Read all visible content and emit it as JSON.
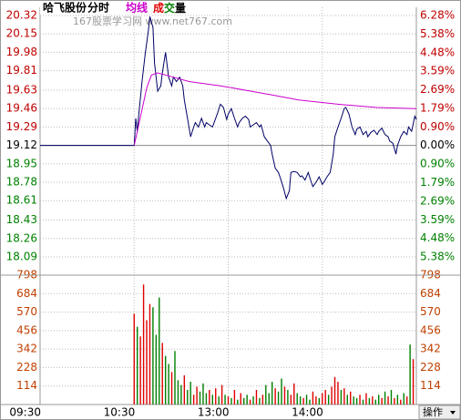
{
  "chart_data": [
    {
      "type": "line",
      "title": "哈飞股份",
      "subtitle": "分时",
      "watermark": "167股票学习网 www.net767.com",
      "xlim": [
        0,
        240
      ],
      "xticks": [
        {
          "value": 0,
          "label": "09:30"
        },
        {
          "value": 60,
          "label": "10:30"
        },
        {
          "value": 120,
          "label": "13:00"
        },
        {
          "value": 180,
          "label": "14:00"
        }
      ],
      "ylim": [
        18.09,
        20.32
      ],
      "yticks": [
        20.32,
        20.15,
        19.98,
        19.81,
        19.63,
        19.46,
        19.29,
        19.12,
        18.95,
        18.78,
        18.61,
        18.43,
        18.26,
        18.09
      ],
      "y2lim": [
        -5.38,
        6.28
      ],
      "y2ticks": [
        {
          "value": 6.28,
          "label": "6.28%"
        },
        {
          "value": 5.38,
          "label": "5.38%"
        },
        {
          "value": 4.48,
          "label": "4.48%"
        },
        {
          "value": 3.59,
          "label": "3.59%"
        },
        {
          "value": 2.69,
          "label": "2.69%"
        },
        {
          "value": 1.79,
          "label": "1.79%"
        },
        {
          "value": 0.9,
          "label": "0.90%"
        },
        {
          "value": 0,
          "label": "0.00%"
        },
        {
          "value": -0.9,
          "label": "0.90%"
        },
        {
          "value": -1.79,
          "label": "1.79%"
        },
        {
          "value": -2.69,
          "label": "2.69%"
        },
        {
          "value": -3.59,
          "label": "3.59%"
        },
        {
          "value": -4.48,
          "label": "4.48%"
        },
        {
          "value": -5.38,
          "label": "5.38%"
        }
      ],
      "grid": true,
      "series": [
        {
          "color": "#000066",
          "x": [
            0,
            60,
            61,
            62,
            63,
            65,
            67,
            69,
            70,
            72,
            73,
            75,
            77,
            78,
            80,
            82,
            84,
            85,
            87,
            89,
            91,
            92,
            94,
            96,
            98,
            99,
            101,
            103,
            105,
            106,
            108,
            110,
            112,
            113,
            115,
            117,
            119,
            120,
            122,
            124,
            126,
            127,
            129,
            131,
            133,
            134,
            136,
            138,
            140,
            141,
            143,
            145,
            147,
            148,
            150,
            152,
            153,
            155,
            157,
            159,
            160,
            162,
            164,
            166,
            167,
            169,
            171,
            173,
            174,
            176,
            178,
            180,
            181,
            183,
            185,
            187,
            188,
            190,
            192,
            194,
            195,
            197,
            199,
            201,
            202,
            204,
            206,
            208,
            209,
            211,
            213,
            215,
            216,
            218,
            220,
            222,
            223,
            225,
            227,
            228,
            230,
            232,
            234,
            235,
            237,
            239,
            240
          ],
          "values": [
            19.12,
            19.12,
            19.37,
            19.25,
            19.41,
            19.71,
            19.96,
            20.17,
            20.31,
            20.21,
            19.88,
            19.62,
            19.67,
            19.79,
            19.98,
            19.75,
            19.67,
            19.75,
            19.71,
            19.75,
            19.67,
            19.54,
            19.37,
            19.2,
            19.29,
            19.33,
            19.29,
            19.37,
            19.29,
            19.33,
            19.31,
            19.29,
            19.37,
            19.41,
            19.5,
            19.47,
            19.36,
            19.41,
            19.46,
            19.37,
            19.29,
            19.33,
            19.37,
            19.39,
            19.36,
            19.29,
            19.31,
            19.33,
            19.29,
            19.31,
            19.2,
            19.16,
            19.12,
            19.04,
            18.91,
            18.87,
            18.83,
            18.74,
            18.63,
            18.7,
            18.87,
            18.88,
            18.87,
            18.83,
            18.84,
            18.8,
            18.87,
            18.78,
            18.74,
            18.78,
            18.83,
            18.76,
            18.78,
            18.83,
            18.87,
            19.04,
            19.2,
            19.29,
            19.37,
            19.46,
            19.47,
            19.41,
            19.29,
            19.22,
            19.27,
            19.29,
            19.22,
            19.25,
            19.2,
            19.24,
            19.26,
            19.22,
            19.25,
            19.28,
            19.22,
            19.2,
            19.16,
            19.14,
            19.04,
            19.12,
            19.2,
            19.25,
            19.22,
            19.29,
            19.25,
            19.39,
            19.36
          ]
        },
        {
          "name": "均线",
          "color": "#cc00cc",
          "x": [
            60,
            62,
            65,
            68,
            71,
            75,
            85,
            95,
            115,
            135,
            150,
            165,
            190,
            215,
            240
          ],
          "values": [
            19.12,
            19.25,
            19.45,
            19.65,
            19.77,
            19.79,
            19.75,
            19.71,
            19.67,
            19.62,
            19.58,
            19.54,
            19.5,
            19.47,
            19.46
          ]
        }
      ]
    },
    {
      "type": "bar",
      "xlim": [
        0,
        240
      ],
      "ylim": [
        0,
        798
      ],
      "yticks": [
        798,
        684,
        570,
        456,
        342,
        228,
        114
      ],
      "grid": true,
      "series": [
        {
          "name": "成交量",
          "x": [
            60,
            62,
            64,
            66,
            68,
            70,
            72,
            74,
            76,
            78,
            80,
            82,
            84,
            86,
            88,
            90,
            92,
            94,
            96,
            98,
            100,
            102,
            104,
            106,
            108,
            110,
            112,
            114,
            116,
            118,
            120,
            122,
            124,
            126,
            128,
            130,
            132,
            134,
            136,
            138,
            140,
            142,
            144,
            146,
            148,
            150,
            152,
            154,
            156,
            158,
            160,
            162,
            164,
            166,
            168,
            170,
            172,
            174,
            176,
            178,
            180,
            182,
            184,
            186,
            188,
            190,
            192,
            194,
            196,
            198,
            200,
            202,
            204,
            206,
            208,
            210,
            212,
            214,
            216,
            218,
            220,
            222,
            224,
            226,
            228,
            230,
            232,
            234,
            236,
            238
          ],
          "values": [
            560,
            480,
            420,
            740,
            520,
            620,
            600,
            430,
            660,
            380,
            300,
            250,
            200,
            330,
            150,
            120,
            180,
            90,
            140,
            60,
            110,
            80,
            130,
            70,
            90,
            60,
            100,
            50,
            120,
            60,
            50,
            40,
            90,
            30,
            70,
            40,
            60,
            30,
            50,
            90,
            40,
            60,
            120,
            70,
            140,
            100,
            80,
            160,
            110,
            90,
            60,
            130,
            70,
            50,
            40,
            60,
            30,
            80,
            50,
            40,
            70,
            90,
            60,
            110,
            170,
            140,
            90,
            100,
            60,
            80,
            50,
            40,
            60,
            30,
            70,
            40,
            50,
            30,
            60,
            40,
            80,
            50,
            90,
            40,
            60,
            30,
            70,
            50,
            370,
            280
          ],
          "colors": [
            "#e00000",
            "#008000",
            "#e00000",
            "#e00000",
            "#e00000",
            "#e00000",
            "#008000",
            "#008000",
            "#008000",
            "#e00000",
            "#008000",
            "#008000",
            "#e00000",
            "#008000",
            "#008000",
            "#008000",
            "#e00000",
            "#008000",
            "#008000",
            "#e00000",
            "#e00000",
            "#008000",
            "#008000",
            "#008000",
            "#e00000",
            "#008000",
            "#e00000",
            "#008000",
            "#e00000",
            "#008000",
            "#e00000",
            "#008000",
            "#e00000",
            "#008000",
            "#e00000",
            "#008000",
            "#008000",
            "#e00000",
            "#008000",
            "#e00000",
            "#008000",
            "#e00000",
            "#008000",
            "#008000",
            "#008000",
            "#e00000",
            "#008000",
            "#008000",
            "#e00000",
            "#008000",
            "#e00000",
            "#e00000",
            "#008000",
            "#008000",
            "#e00000",
            "#008000",
            "#008000",
            "#e00000",
            "#e00000",
            "#008000",
            "#e00000",
            "#e00000",
            "#008000",
            "#e00000",
            "#e00000",
            "#e00000",
            "#008000",
            "#e00000",
            "#008000",
            "#e00000",
            "#008000",
            "#008000",
            "#e00000",
            "#008000",
            "#e00000",
            "#008000",
            "#e00000",
            "#008000",
            "#008000",
            "#e00000",
            "#008000",
            "#e00000",
            "#008000",
            "#e00000",
            "#008000",
            "#e00000",
            "#008000",
            "#e00000",
            "#008000",
            "#e00000"
          ]
        }
      ]
    }
  ],
  "toolbar": {
    "button": "操作"
  }
}
